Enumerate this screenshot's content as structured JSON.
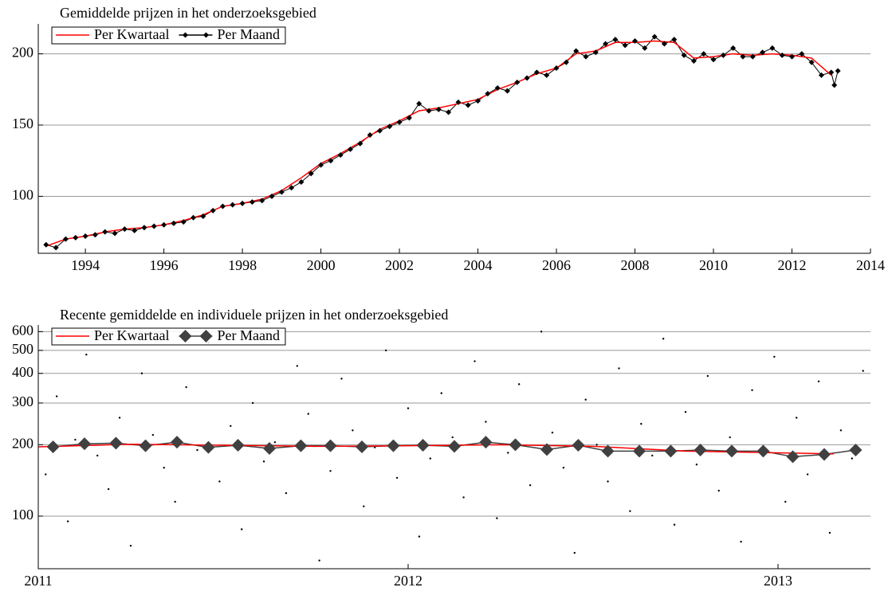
{
  "chart_data": [
    {
      "type": "line",
      "title": "Gemiddelde prijzen in het onderzoeksgebied",
      "legend": "upper left",
      "grid": true,
      "xlim": [
        1992.8,
        2014
      ],
      "xticks": [
        1994,
        1996,
        1998,
        2000,
        2002,
        2004,
        2006,
        2008,
        2010,
        2012,
        2014
      ],
      "ylim": [
        60,
        221
      ],
      "yticks": [
        100,
        150,
        200
      ],
      "series": [
        {
          "name": "Per Kwartaal",
          "color": "#ff0000",
          "x": [
            1993.0,
            1993.5,
            1994.0,
            1994.5,
            1995.0,
            1995.5,
            1996.0,
            1996.5,
            1997.0,
            1997.5,
            1998.0,
            1998.5,
            1999.0,
            1999.5,
            2000.0,
            2000.5,
            2001.0,
            2001.5,
            2002.0,
            2002.5,
            2003.0,
            2003.5,
            2004.0,
            2004.5,
            2005.0,
            2005.5,
            2006.0,
            2006.5,
            2007.0,
            2007.5,
            2008.0,
            2008.5,
            2009.0,
            2009.5,
            2010.0,
            2010.5,
            2011.0,
            2011.5,
            2012.0,
            2012.5,
            2013.0
          ],
          "values": [
            65,
            70,
            72,
            75,
            77,
            78,
            80,
            83,
            87,
            93,
            95,
            98,
            104,
            113,
            123,
            130,
            138,
            147,
            153,
            160,
            162,
            165,
            168,
            175,
            180,
            186,
            190,
            200,
            202,
            208,
            208,
            209,
            208,
            197,
            198,
            200,
            199,
            200,
            199,
            197,
            185
          ]
        },
        {
          "name": "Per Maand",
          "color": "#000000",
          "marker": "diamond",
          "x": [
            1993.0,
            1993.25,
            1993.5,
            1993.75,
            1994.0,
            1994.25,
            1994.5,
            1994.75,
            1995.0,
            1995.25,
            1995.5,
            1995.75,
            1996.0,
            1996.25,
            1996.5,
            1996.75,
            1997.0,
            1997.25,
            1997.5,
            1997.75,
            1998.0,
            1998.25,
            1998.5,
            1998.75,
            1999.0,
            1999.25,
            1999.5,
            1999.75,
            2000.0,
            2000.25,
            2000.5,
            2000.75,
            2001.0,
            2001.25,
            2001.5,
            2001.75,
            2002.0,
            2002.25,
            2002.5,
            2002.75,
            2003.0,
            2003.25,
            2003.5,
            2003.75,
            2004.0,
            2004.25,
            2004.5,
            2004.75,
            2005.0,
            2005.25,
            2005.5,
            2005.75,
            2006.0,
            2006.25,
            2006.5,
            2006.75,
            2007.0,
            2007.25,
            2007.5,
            2007.75,
            2008.0,
            2008.25,
            2008.5,
            2008.75,
            2009.0,
            2009.25,
            2009.5,
            2009.75,
            2010.0,
            2010.25,
            2010.5,
            2010.75,
            2011.0,
            2011.25,
            2011.5,
            2011.75,
            2012.0,
            2012.25,
            2012.5,
            2012.75,
            2013.0,
            2013.08,
            2013.17
          ],
          "values": [
            66,
            64,
            70,
            71,
            72,
            73,
            75,
            74,
            77,
            76,
            78,
            79,
            80,
            81,
            82,
            85,
            86,
            90,
            93,
            94,
            95,
            96,
            97,
            100,
            103,
            106,
            110,
            116,
            122,
            125,
            129,
            133,
            137,
            143,
            146,
            149,
            152,
            155,
            165,
            160,
            161,
            159,
            166,
            164,
            167,
            172,
            176,
            174,
            180,
            183,
            187,
            185,
            190,
            194,
            202,
            198,
            201,
            207,
            210,
            206,
            209,
            204,
            212,
            207,
            210,
            199,
            195,
            200,
            196,
            199,
            204,
            198,
            198,
            201,
            204,
            199,
            198,
            200,
            194,
            185,
            187,
            178,
            188
          ]
        }
      ]
    },
    {
      "type": "line",
      "title": "Recente gemiddelde en individuele prijzen in het onderzoeksgebied",
      "legend": "upper left",
      "grid": true,
      "log": true,
      "xlim": [
        2011,
        2013.25
      ],
      "xticks": [
        2011,
        2012,
        2013
      ],
      "ylim": [
        60,
        640
      ],
      "yticks": [
        100,
        200,
        300,
        400,
        500,
        600
      ],
      "points": {
        "color": "#000000",
        "x": [
          2011.02,
          2011.05,
          2011.08,
          2011.1,
          2011.13,
          2011.16,
          2011.19,
          2011.22,
          2011.25,
          2011.28,
          2011.31,
          2011.34,
          2011.37,
          2011.4,
          2011.43,
          2011.46,
          2011.49,
          2011.52,
          2011.55,
          2011.58,
          2011.61,
          2011.64,
          2011.67,
          2011.7,
          2011.73,
          2011.76,
          2011.79,
          2011.82,
          2011.85,
          2011.88,
          2011.91,
          2011.94,
          2011.97,
          2012.0,
          2012.03,
          2012.06,
          2012.09,
          2012.12,
          2012.15,
          2012.18,
          2012.21,
          2012.24,
          2012.27,
          2012.3,
          2012.33,
          2012.36,
          2012.39,
          2012.42,
          2012.45,
          2012.48,
          2012.51,
          2012.54,
          2012.57,
          2012.6,
          2012.63,
          2012.66,
          2012.69,
          2012.72,
          2012.75,
          2012.78,
          2012.81,
          2012.84,
          2012.87,
          2012.9,
          2012.93,
          2012.96,
          2012.99,
          2013.02,
          2013.05,
          2013.08,
          2013.11,
          2013.14,
          2013.17,
          2013.2,
          2013.23
        ],
        "values": [
          150,
          320,
          95,
          210,
          480,
          180,
          130,
          260,
          75,
          400,
          220,
          160,
          115,
          350,
          190,
          540,
          140,
          240,
          88,
          300,
          170,
          205,
          125,
          430,
          270,
          65,
          155,
          380,
          230,
          110,
          195,
          500,
          145,
          285,
          82,
          175,
          330,
          215,
          120,
          450,
          250,
          98,
          185,
          360,
          135,
          600,
          225,
          160,
          70,
          310,
          200,
          140,
          420,
          105,
          245,
          180,
          560,
          92,
          275,
          165,
          390,
          128,
          215,
          78,
          340,
          190,
          470,
          115,
          260,
          150,
          370,
          85,
          230,
          175,
          410
        ]
      },
      "series": [
        {
          "name": "Per Kwartaal",
          "color": "#ff0000",
          "x": [
            2011.0,
            2011.25,
            2011.5,
            2011.75,
            2012.0,
            2012.25,
            2012.5,
            2012.75,
            2013.0,
            2013.15
          ],
          "values": [
            196,
            201,
            199,
            197,
            198,
            200,
            197,
            188,
            185,
            183
          ]
        },
        {
          "name": "Per Maand",
          "color": "#404040",
          "marker": "diamond",
          "x": [
            2011.04,
            2011.125,
            2011.21,
            2011.29,
            2011.375,
            2011.46,
            2011.54,
            2011.625,
            2011.71,
            2011.79,
            2011.875,
            2011.96,
            2012.04,
            2012.125,
            2012.21,
            2012.29,
            2012.375,
            2012.46,
            2012.54,
            2012.625,
            2012.71,
            2012.79,
            2012.875,
            2012.96,
            2013.04,
            2013.125,
            2013.21
          ],
          "values": [
            196,
            202,
            203,
            198,
            205,
            195,
            199,
            193,
            198,
            198,
            196,
            198,
            199,
            197,
            205,
            200,
            191,
            199,
            188,
            188,
            188,
            190,
            188,
            188,
            178,
            182,
            190
          ]
        }
      ]
    }
  ]
}
